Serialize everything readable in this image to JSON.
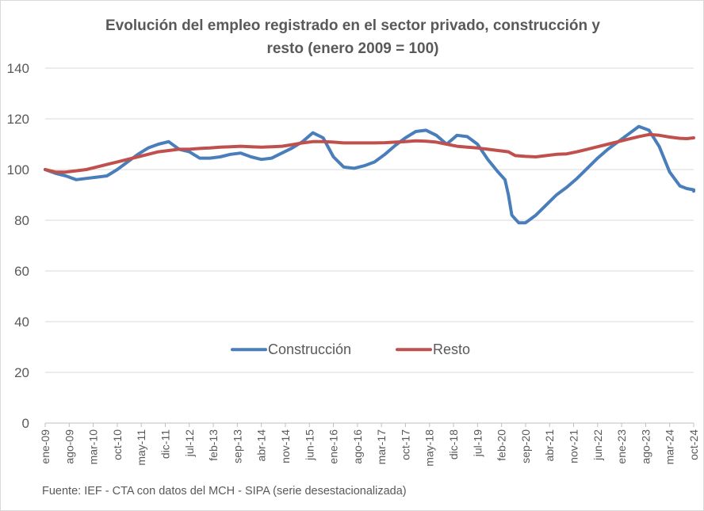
{
  "chart_data": {
    "type": "line",
    "title_lines": [
      "Evolución del empleo registrado en el sector privado, construcción y",
      "resto (enero 2009 = 100)"
    ],
    "xlabel": "",
    "ylabel": "",
    "ylim": [
      0,
      140
    ],
    "yticks": [
      0,
      20,
      40,
      60,
      80,
      100,
      120,
      140
    ],
    "x_range": [
      "2009-01",
      "2024-10"
    ],
    "x_tick_labels": [
      "ene-09",
      "ago-09",
      "mar-10",
      "oct-10",
      "may-11",
      "dic-11",
      "jul-12",
      "feb-13",
      "sep-13",
      "abr-14",
      "nov-14",
      "jun-15",
      "ene-16",
      "ago-16",
      "mar-17",
      "oct-17",
      "may-18",
      "dic-18",
      "jul-19",
      "feb-20",
      "sep-20",
      "abr-21",
      "nov-21",
      "jun-22",
      "ene-23",
      "ago-23",
      "mar-24",
      "oct-24"
    ],
    "grid": true,
    "legend_position": "center",
    "series": [
      {
        "name": "Construcción",
        "color": "#4a7ebb",
        "points": [
          [
            "2009-01",
            100
          ],
          [
            "2009-04",
            98.5
          ],
          [
            "2009-07",
            97.5
          ],
          [
            "2009-10",
            96
          ],
          [
            "2010-01",
            96.5
          ],
          [
            "2010-04",
            97
          ],
          [
            "2010-07",
            97.5
          ],
          [
            "2010-10",
            100
          ],
          [
            "2011-01",
            103
          ],
          [
            "2011-04",
            106
          ],
          [
            "2011-07",
            108.5
          ],
          [
            "2011-10",
            110
          ],
          [
            "2012-01",
            111
          ],
          [
            "2012-04",
            108
          ],
          [
            "2012-07",
            107
          ],
          [
            "2012-10",
            104.5
          ],
          [
            "2013-01",
            104.5
          ],
          [
            "2013-04",
            105
          ],
          [
            "2013-07",
            106
          ],
          [
            "2013-10",
            106.5
          ],
          [
            "2014-01",
            105
          ],
          [
            "2014-04",
            104
          ],
          [
            "2014-07",
            104.5
          ],
          [
            "2014-10",
            106.5
          ],
          [
            "2015-01",
            108.5
          ],
          [
            "2015-04",
            111
          ],
          [
            "2015-07",
            114.5
          ],
          [
            "2015-10",
            112.5
          ],
          [
            "2016-01",
            105
          ],
          [
            "2016-04",
            101
          ],
          [
            "2016-07",
            100.5
          ],
          [
            "2016-10",
            101.5
          ],
          [
            "2017-01",
            103
          ],
          [
            "2017-04",
            106
          ],
          [
            "2017-07",
            109.5
          ],
          [
            "2017-10",
            112.5
          ],
          [
            "2018-01",
            115
          ],
          [
            "2018-04",
            115.5
          ],
          [
            "2018-07",
            113.5
          ],
          [
            "2018-10",
            110
          ],
          [
            "2019-01",
            113.5
          ],
          [
            "2019-04",
            113
          ],
          [
            "2019-07",
            110
          ],
          [
            "2019-10",
            104
          ],
          [
            "2020-01",
            99
          ],
          [
            "2020-03",
            96
          ],
          [
            "2020-04",
            90
          ],
          [
            "2020-05",
            82
          ],
          [
            "2020-06",
            80.5
          ],
          [
            "2020-07",
            79
          ],
          [
            "2020-09",
            79
          ],
          [
            "2020-12",
            82
          ],
          [
            "2021-03",
            86
          ],
          [
            "2021-06",
            90
          ],
          [
            "2021-09",
            93
          ],
          [
            "2021-12",
            96.5
          ],
          [
            "2022-03",
            100.5
          ],
          [
            "2022-06",
            104.5
          ],
          [
            "2022-09",
            108
          ],
          [
            "2022-12",
            111
          ],
          [
            "2023-03",
            114
          ],
          [
            "2023-06",
            117
          ],
          [
            "2023-09",
            115.5
          ],
          [
            "2023-12",
            109
          ],
          [
            "2024-03",
            99
          ],
          [
            "2024-06",
            93.5
          ],
          [
            "2024-08",
            92.5
          ],
          [
            "2024-10",
            92
          ],
          [
            "2024-10",
            91.5
          ]
        ]
      },
      {
        "name": "Resto",
        "color": "#c0504d",
        "points": [
          [
            "2009-01",
            100
          ],
          [
            "2009-04",
            99
          ],
          [
            "2009-07",
            99
          ],
          [
            "2009-10",
            99.5
          ],
          [
            "2010-01",
            100
          ],
          [
            "2010-04",
            101
          ],
          [
            "2010-07",
            102
          ],
          [
            "2010-10",
            103
          ],
          [
            "2011-01",
            104
          ],
          [
            "2011-04",
            105
          ],
          [
            "2011-07",
            106
          ],
          [
            "2011-10",
            107
          ],
          [
            "2012-01",
            107.5
          ],
          [
            "2012-04",
            108
          ],
          [
            "2012-07",
            108
          ],
          [
            "2012-10",
            108.3
          ],
          [
            "2013-01",
            108.5
          ],
          [
            "2013-04",
            108.8
          ],
          [
            "2013-07",
            109
          ],
          [
            "2013-10",
            109.2
          ],
          [
            "2014-01",
            109
          ],
          [
            "2014-04",
            108.8
          ],
          [
            "2014-07",
            109
          ],
          [
            "2014-10",
            109.2
          ],
          [
            "2015-01",
            109.8
          ],
          [
            "2015-04",
            110.5
          ],
          [
            "2015-07",
            111
          ],
          [
            "2015-10",
            111
          ],
          [
            "2016-01",
            110.8
          ],
          [
            "2016-04",
            110.5
          ],
          [
            "2016-07",
            110.5
          ],
          [
            "2016-10",
            110.5
          ],
          [
            "2017-01",
            110.5
          ],
          [
            "2017-04",
            110.6
          ],
          [
            "2017-07",
            110.8
          ],
          [
            "2017-10",
            111
          ],
          [
            "2018-01",
            111.3
          ],
          [
            "2018-04",
            111.2
          ],
          [
            "2018-07",
            110.8
          ],
          [
            "2018-10",
            110
          ],
          [
            "2019-01",
            109.2
          ],
          [
            "2019-04",
            108.8
          ],
          [
            "2019-07",
            108.5
          ],
          [
            "2019-10",
            108
          ],
          [
            "2020-01",
            107.5
          ],
          [
            "2020-04",
            107
          ],
          [
            "2020-06",
            105.5
          ],
          [
            "2020-09",
            105.2
          ],
          [
            "2020-12",
            105
          ],
          [
            "2021-03",
            105.5
          ],
          [
            "2021-06",
            106
          ],
          [
            "2021-09",
            106.2
          ],
          [
            "2021-12",
            107
          ],
          [
            "2022-03",
            108
          ],
          [
            "2022-06",
            109
          ],
          [
            "2022-09",
            110
          ],
          [
            "2022-12",
            111
          ],
          [
            "2023-03",
            112
          ],
          [
            "2023-06",
            113
          ],
          [
            "2023-09",
            113.8
          ],
          [
            "2023-12",
            113.5
          ],
          [
            "2024-03",
            112.8
          ],
          [
            "2024-06",
            112.3
          ],
          [
            "2024-08",
            112.2
          ],
          [
            "2024-10",
            112.5
          ]
        ]
      }
    ],
    "source": "Fuente: IEF - CTA con datos del MCH - SIPA (serie desestacionalizada)"
  }
}
